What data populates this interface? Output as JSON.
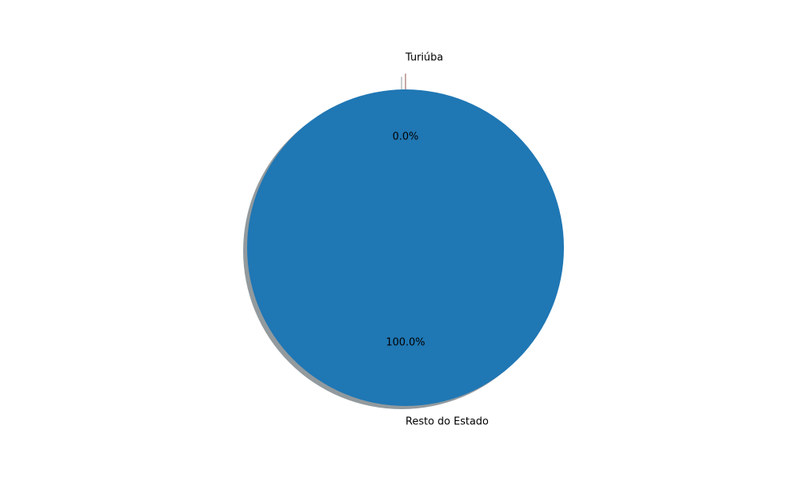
{
  "chart_data": {
    "type": "pie",
    "categories": [
      "Turiúba",
      "Resto do Estado"
    ],
    "values": [
      0.0,
      100.0
    ],
    "pct_labels": [
      "0.0%",
      "100.0%"
    ],
    "colors": [
      "#8c564b",
      "#1f77b4"
    ],
    "explode": [
      true,
      false
    ],
    "shadow": true,
    "shadow_color": "#8c9599",
    "title": ""
  }
}
